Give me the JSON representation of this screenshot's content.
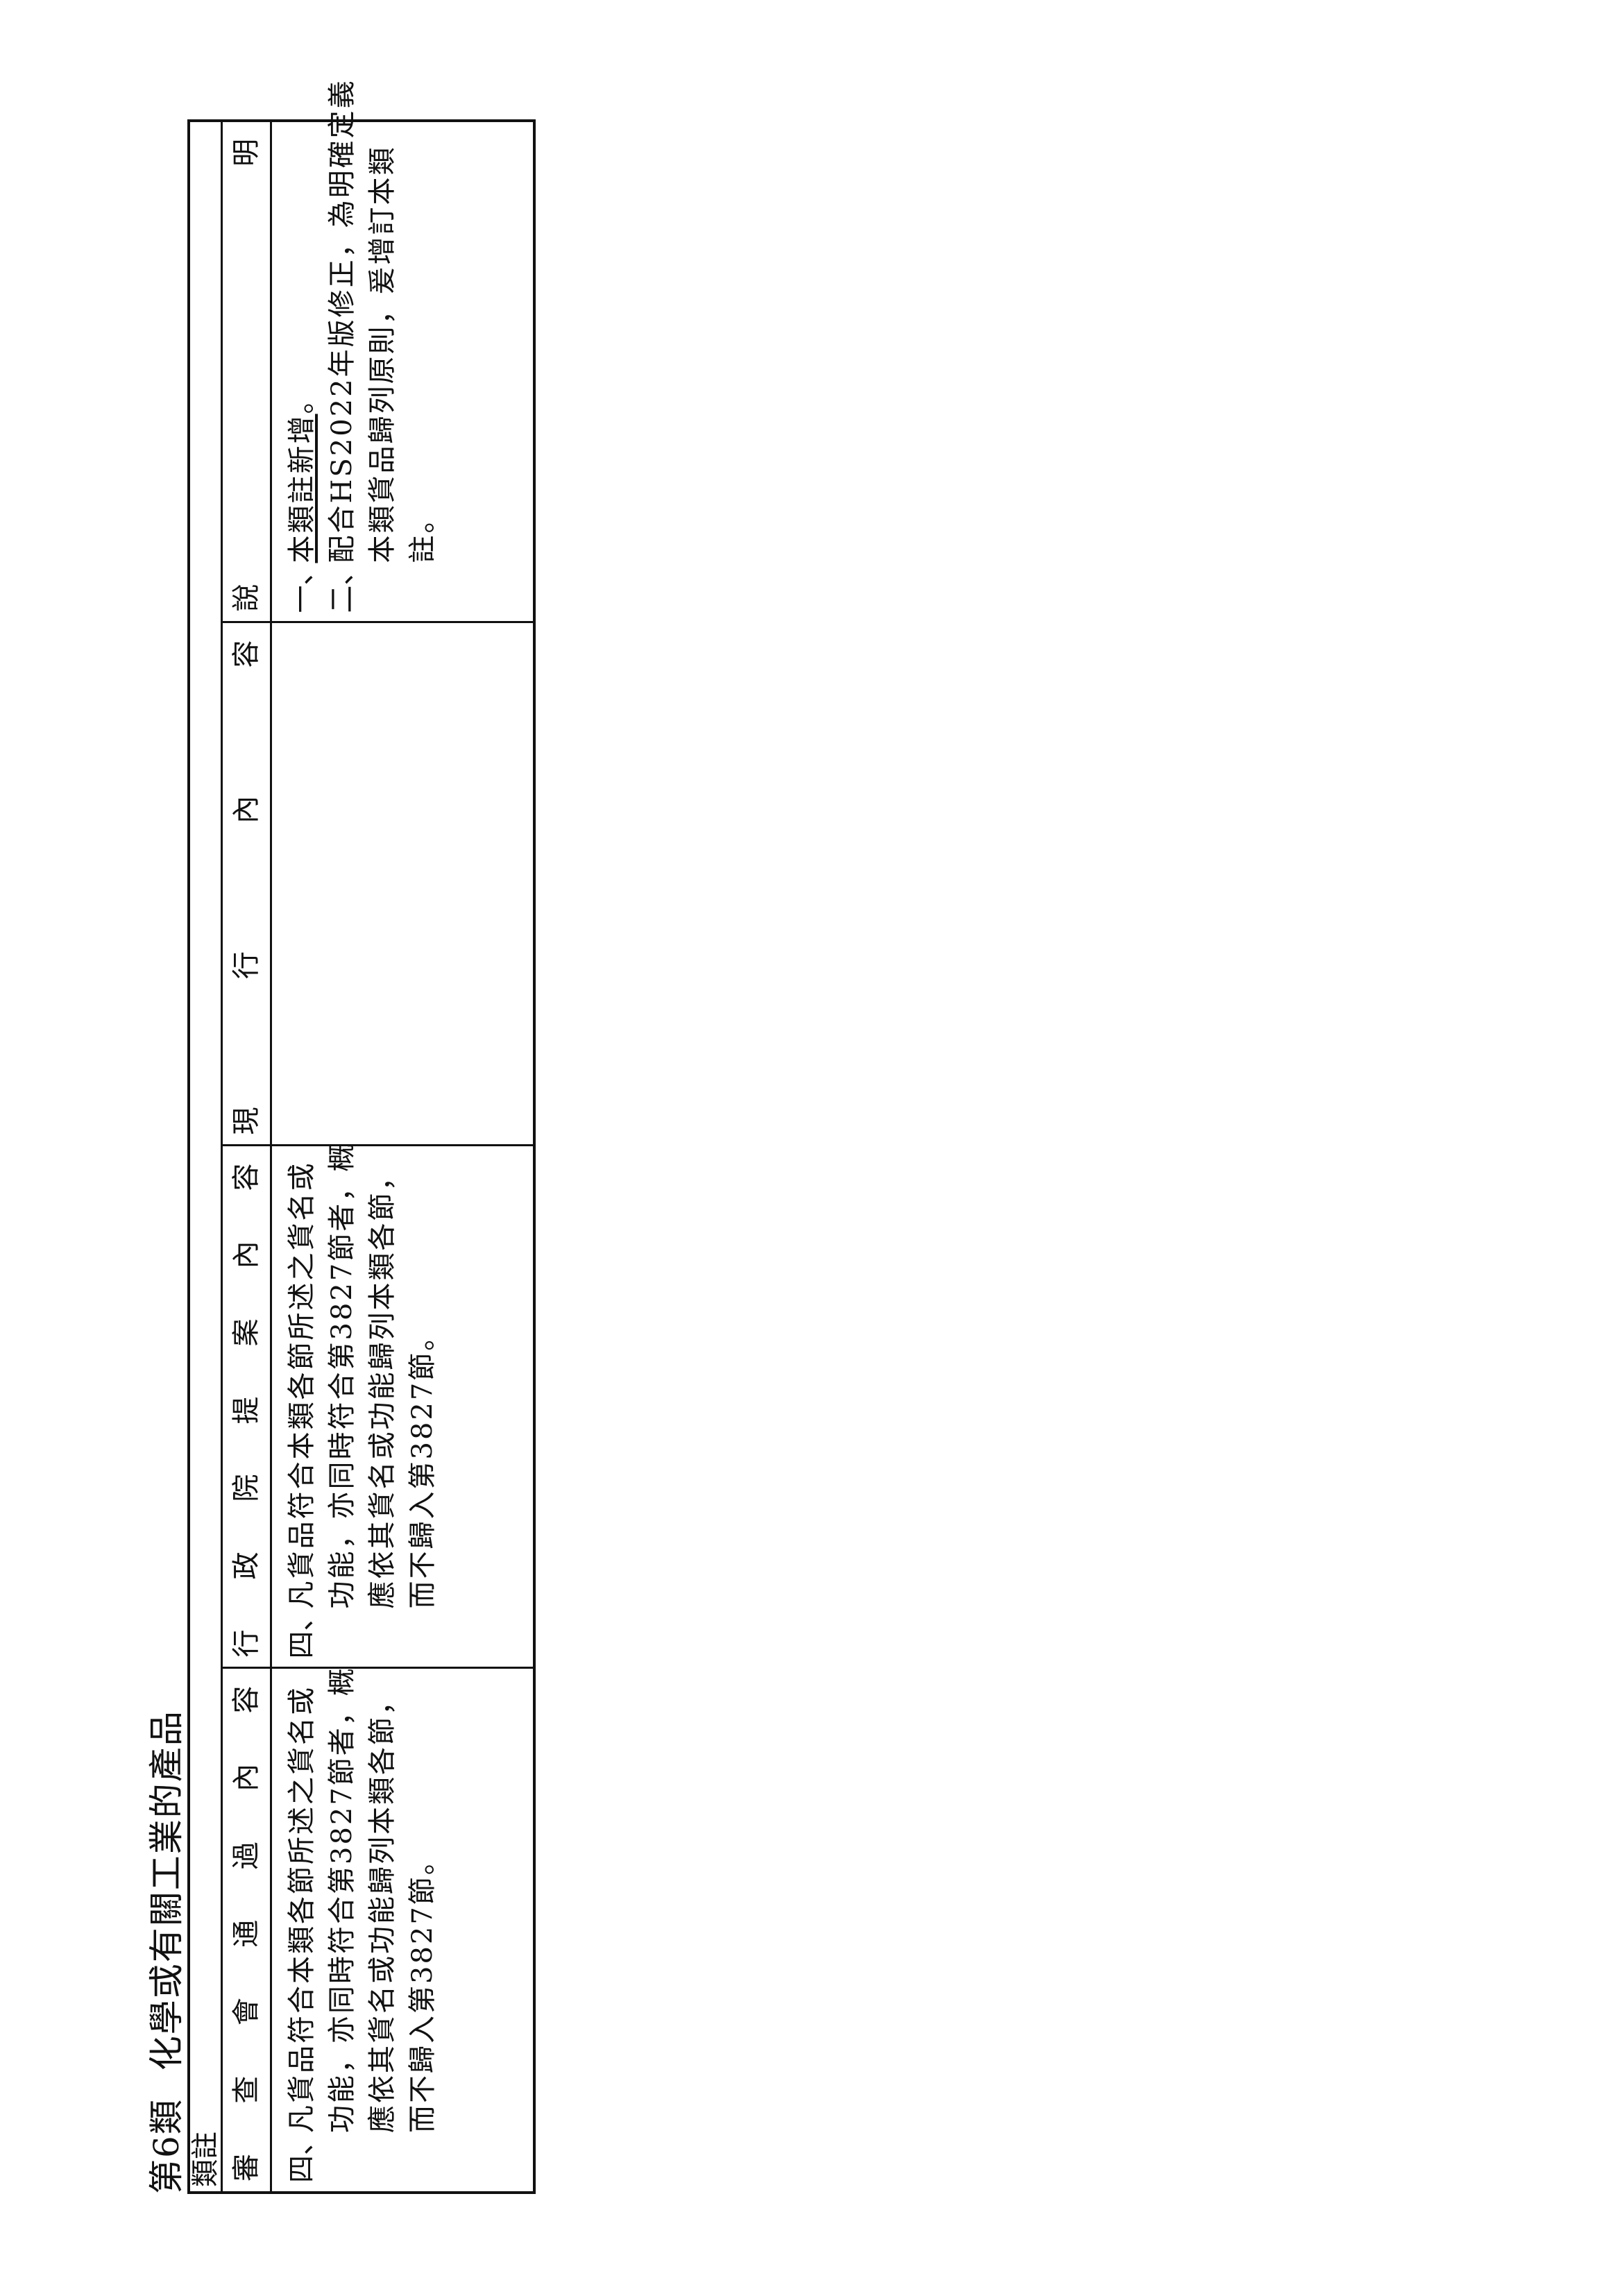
{
  "title": {
    "chapter": "第6類",
    "name": "化學或有關工業的產品"
  },
  "section_label": "類註",
  "headers": [
    "審查會通過內容",
    "行政院提案內容",
    "現行內容",
    "說明"
  ],
  "review_content": {
    "label": "四、",
    "lines": [
      "凡貨品符合本類各節所述之貨名或",
      "功能，亦同時符合第3827節者，概",
      "應依其貨名或功能歸列本類各節，",
      "而不歸入第3827節。"
    ]
  },
  "proposal_content": {
    "label": "四、",
    "lines": [
      "凡貨品符合本類各節所述之貨名或",
      "功能，亦同時符合第3827節者，概",
      "應依其貨名或功能歸列本類各節，",
      "而不歸入第3827節。"
    ]
  },
  "current_content": "",
  "explanation": [
    {
      "label": "一、",
      "underlined": "本類註新增",
      "rest": "。"
    },
    {
      "label": "二、",
      "lines": [
        "配合HS2022年版修正，為明確定義",
        "本類貨品歸列原則，爰增訂本類",
        "註。"
      ]
    }
  ]
}
